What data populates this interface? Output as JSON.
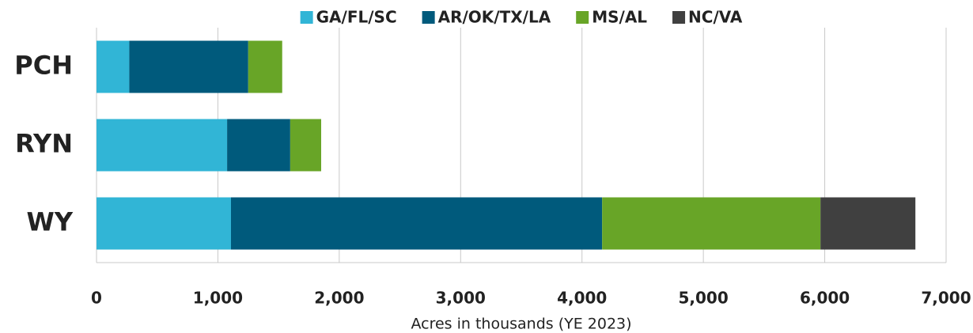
{
  "chart_data": {
    "type": "stacked_bar_horizontal",
    "xlabel": "Acres in thousands (YE 2023)",
    "categories": [
      "PCH",
      "RYN",
      "WY"
    ],
    "series": [
      {
        "name": "GA/FL/SC",
        "color": "#31b5d6",
        "values": [
          270,
          1076,
          1108
        ]
      },
      {
        "name": "AR/OK/TX/LA",
        "color": "#005a7c",
        "values": [
          980,
          520,
          3058
        ]
      },
      {
        "name": "MS/AL",
        "color": "#68a527",
        "values": [
          280,
          255,
          1799
        ]
      },
      {
        "name": "NC/VA",
        "color": "#404040",
        "values": [
          0,
          0,
          782
        ]
      }
    ],
    "xlim": [
      0,
      7000
    ],
    "xticks": [
      0,
      {
        "value": 1000,
        "label": "1,000"
      },
      {
        "value": 2000,
        "label": "2,000"
      },
      {
        "value": 3000,
        "label": "3,000"
      },
      {
        "value": 4000,
        "label": "4,000"
      },
      {
        "value": 5000,
        "label": "5,000"
      },
      {
        "value": 6000,
        "label": "6,000"
      },
      {
        "value": 7000,
        "label": "7,000"
      }
    ],
    "grid": true,
    "legend": "top"
  }
}
